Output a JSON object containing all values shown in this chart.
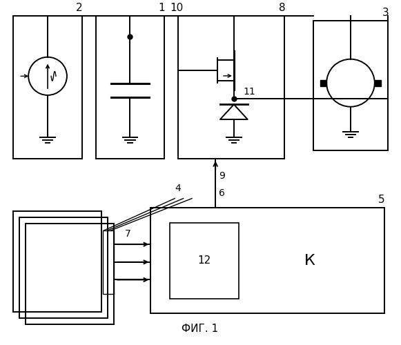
{
  "background_color": "#ffffff",
  "title": "ФИГ. 1",
  "title_fontsize": 11,
  "fig_width": 5.81,
  "fig_height": 5.0,
  "dpi": 100
}
